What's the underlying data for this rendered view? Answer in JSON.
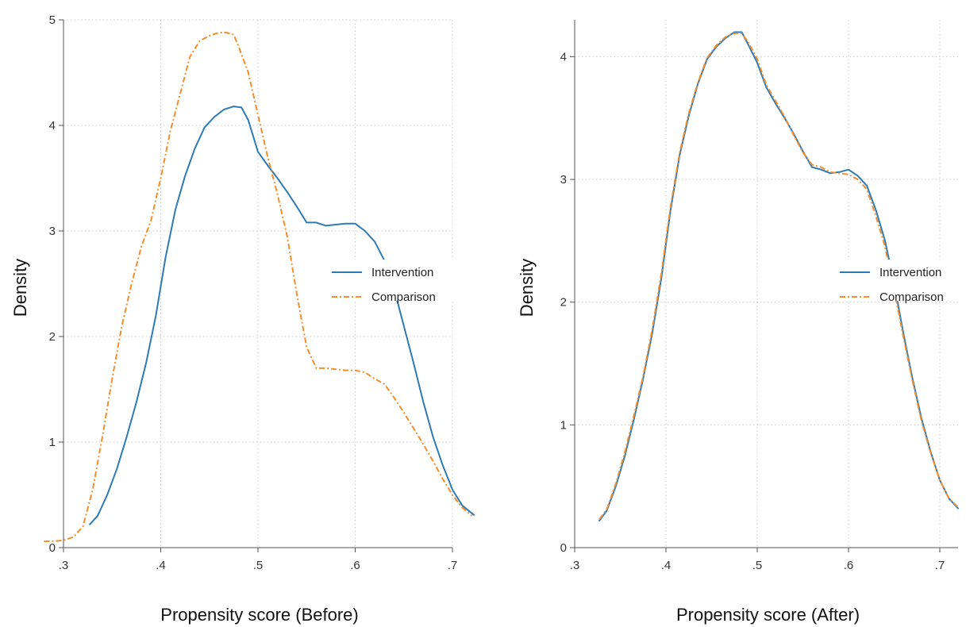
{
  "colors": {
    "intervention": "#2e7bb4",
    "comparison": "#f28e2b"
  },
  "chart_data": [
    {
      "type": "line",
      "xlabel": "Propensity score (Before)",
      "ylabel": "Density",
      "xlim": [
        0.3,
        0.7
      ],
      "ylim": [
        0,
        5
      ],
      "x_ticks": [
        0.3,
        0.4,
        0.5,
        0.6,
        0.7
      ],
      "x_tick_labels": [
        ".3",
        ".4",
        ".5",
        ".6",
        ".7"
      ],
      "y_ticks": [
        0,
        1,
        2,
        3,
        4,
        5
      ],
      "y_tick_labels": [
        "0",
        "1",
        "2",
        "3",
        "4",
        "5"
      ],
      "grid": true,
      "legend_position": "center-right",
      "series": [
        {
          "name": "Intervention",
          "style": "solid",
          "x": [
            0.327,
            0.335,
            0.345,
            0.355,
            0.365,
            0.375,
            0.385,
            0.395,
            0.405,
            0.415,
            0.425,
            0.435,
            0.445,
            0.455,
            0.465,
            0.475,
            0.483,
            0.49,
            0.5,
            0.51,
            0.52,
            0.53,
            0.54,
            0.55,
            0.56,
            0.57,
            0.58,
            0.59,
            0.6,
            0.61,
            0.62,
            0.63,
            0.64,
            0.65,
            0.66,
            0.67,
            0.68,
            0.69,
            0.7,
            0.71,
            0.722
          ],
          "y": [
            0.22,
            0.3,
            0.5,
            0.75,
            1.05,
            1.38,
            1.75,
            2.2,
            2.75,
            3.2,
            3.52,
            3.78,
            3.98,
            4.08,
            4.15,
            4.18,
            4.17,
            4.05,
            3.75,
            3.62,
            3.5,
            3.37,
            3.23,
            3.08,
            3.08,
            3.05,
            3.06,
            3.07,
            3.07,
            3.0,
            2.9,
            2.72,
            2.45,
            2.1,
            1.75,
            1.38,
            1.05,
            0.78,
            0.55,
            0.4,
            0.31
          ]
        },
        {
          "name": "Comparison",
          "style": "dash-dot",
          "x": [
            0.28,
            0.29,
            0.3,
            0.31,
            0.32,
            0.33,
            0.34,
            0.35,
            0.36,
            0.37,
            0.38,
            0.39,
            0.4,
            0.41,
            0.42,
            0.43,
            0.44,
            0.45,
            0.46,
            0.467,
            0.475,
            0.48,
            0.49,
            0.5,
            0.51,
            0.52,
            0.53,
            0.54,
            0.55,
            0.56,
            0.57,
            0.58,
            0.59,
            0.6,
            0.61,
            0.62,
            0.63,
            0.64,
            0.65,
            0.66,
            0.67,
            0.68,
            0.69,
            0.7,
            0.71,
            0.72
          ],
          "y": [
            0.06,
            0.06,
            0.07,
            0.1,
            0.2,
            0.55,
            1.05,
            1.6,
            2.1,
            2.5,
            2.85,
            3.1,
            3.5,
            3.95,
            4.3,
            4.65,
            4.8,
            4.85,
            4.88,
            4.88,
            4.86,
            4.75,
            4.5,
            4.1,
            3.7,
            3.35,
            2.95,
            2.4,
            1.9,
            1.7,
            1.7,
            1.69,
            1.68,
            1.68,
            1.66,
            1.6,
            1.55,
            1.42,
            1.28,
            1.13,
            0.98,
            0.82,
            0.65,
            0.5,
            0.38,
            0.3
          ]
        }
      ]
    },
    {
      "type": "line",
      "xlabel": "Propensity score (After)",
      "ylabel": "Density",
      "xlim": [
        0.3,
        0.72
      ],
      "ylim": [
        0,
        4.3
      ],
      "x_ticks": [
        0.3,
        0.4,
        0.5,
        0.6,
        0.7
      ],
      "x_tick_labels": [
        ".3",
        ".4",
        ".5",
        ".6",
        ".7"
      ],
      "y_ticks": [
        0,
        1,
        2,
        3,
        4
      ],
      "y_tick_labels": [
        "0",
        "1",
        "2",
        "3",
        "4"
      ],
      "grid": true,
      "legend_position": "center-right",
      "series": [
        {
          "name": "Intervention",
          "style": "solid",
          "x": [
            0.327,
            0.335,
            0.345,
            0.355,
            0.365,
            0.375,
            0.385,
            0.395,
            0.405,
            0.415,
            0.425,
            0.435,
            0.445,
            0.455,
            0.465,
            0.475,
            0.483,
            0.49,
            0.5,
            0.51,
            0.52,
            0.53,
            0.54,
            0.55,
            0.56,
            0.57,
            0.58,
            0.59,
            0.6,
            0.61,
            0.62,
            0.63,
            0.64,
            0.65,
            0.66,
            0.67,
            0.68,
            0.69,
            0.7,
            0.71,
            0.72
          ],
          "y": [
            0.22,
            0.3,
            0.5,
            0.75,
            1.05,
            1.38,
            1.75,
            2.2,
            2.75,
            3.2,
            3.52,
            3.78,
            3.98,
            4.08,
            4.15,
            4.2,
            4.2,
            4.1,
            3.95,
            3.75,
            3.62,
            3.5,
            3.37,
            3.23,
            3.1,
            3.08,
            3.05,
            3.06,
            3.08,
            3.03,
            2.95,
            2.75,
            2.5,
            2.15,
            1.75,
            1.38,
            1.05,
            0.78,
            0.55,
            0.4,
            0.32
          ]
        },
        {
          "name": "Comparison",
          "style": "dash-dot",
          "x": [
            0.327,
            0.335,
            0.345,
            0.355,
            0.365,
            0.375,
            0.385,
            0.395,
            0.405,
            0.415,
            0.425,
            0.435,
            0.445,
            0.455,
            0.465,
            0.475,
            0.483,
            0.49,
            0.5,
            0.51,
            0.52,
            0.53,
            0.54,
            0.55,
            0.56,
            0.57,
            0.58,
            0.59,
            0.6,
            0.61,
            0.62,
            0.63,
            0.64,
            0.65,
            0.66,
            0.67,
            0.68,
            0.69,
            0.7,
            0.71,
            0.72
          ],
          "y": [
            0.23,
            0.31,
            0.52,
            0.78,
            1.08,
            1.4,
            1.78,
            2.24,
            2.78,
            3.22,
            3.54,
            3.79,
            3.99,
            4.09,
            4.16,
            4.19,
            4.19,
            4.12,
            3.98,
            3.77,
            3.64,
            3.51,
            3.36,
            3.22,
            3.12,
            3.1,
            3.06,
            3.05,
            3.04,
            3.0,
            2.92,
            2.7,
            2.45,
            2.1,
            1.72,
            1.36,
            1.03,
            0.77,
            0.55,
            0.4,
            0.33
          ]
        }
      ]
    }
  ]
}
